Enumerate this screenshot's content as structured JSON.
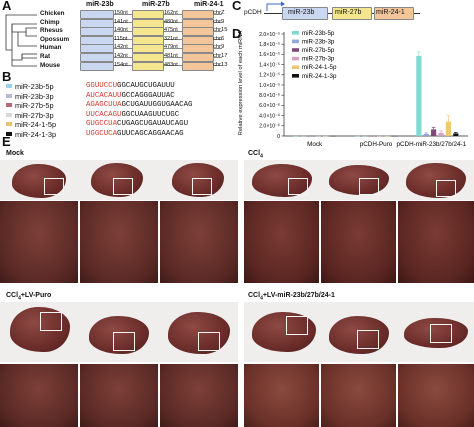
{
  "panel_letters": {
    "a": "A",
    "b": "B",
    "c": "C",
    "d": "D",
    "e": "E"
  },
  "panel_a": {
    "gene_headers": [
      "miR-23b",
      "miR-27b",
      "miR-24-1"
    ],
    "species": [
      {
        "name": "Chicken",
        "len1": "150nt",
        "len2": "162nt",
        "chr": "chrZ"
      },
      {
        "name": "Chimp",
        "len1": "141nt",
        "len2": "480nt",
        "chr": "chr9"
      },
      {
        "name": "Rhesus",
        "len1": "140nt",
        "len2": "475nt",
        "chr": "chr15"
      },
      {
        "name": "Opossum",
        "len1": "115nt",
        "len2": "321nt",
        "chr": "chr6"
      },
      {
        "name": "Human",
        "len1": "142nt",
        "len2": "479nt",
        "chr": "chr9"
      },
      {
        "name": "Rat",
        "len1": "142nt",
        "len2": "481nt",
        "chr": "chr17"
      },
      {
        "name": "Mouse",
        "len1": "154nt",
        "len2": "483nt",
        "chr": "chr13"
      }
    ],
    "colors": {
      "mir23b": "#c9d8f0",
      "mir27b": "#f4e58f",
      "mir24": "#f2c69a"
    }
  },
  "panel_b": {
    "rows": [
      {
        "name": "miR-23b-5p",
        "seed": "GGUUCCU",
        "rest": "GGCAUGCUGAUUU",
        "swatch": "#9ad1ee"
      },
      {
        "name": "miR-23b-3p",
        "seed": "AUCACAUU",
        "rest": "GCCAGGGAUUAC",
        "swatch": "#b9b9d9"
      },
      {
        "name": "miR-27b-5p",
        "seed": "AGAGCUUA",
        "rest": "GCUGAUUGGUGAACAG",
        "swatch": "#b96a7a"
      },
      {
        "name": "miR-27b-3p",
        "seed": "UUCACAGU",
        "rest": "GGCUAAGUUCUGC",
        "swatch": "#d8d8d8"
      },
      {
        "name": "miR-24-1-5p",
        "seed": "GUGCCUA",
        "rest": "CUGAGCUGAUAUCAGU",
        "swatch": "#eac26e"
      },
      {
        "name": "miR-24-1-3p",
        "seed": "UGGCUCA",
        "rest": "GUUCAGCAGGAACAG",
        "swatch": "#111111"
      }
    ],
    "seed_color": "#d43a2c"
  },
  "panel_c": {
    "vector": "pCDH",
    "genes": [
      "miR-23b",
      "miR-27b",
      "miR-24-1"
    ],
    "colors": {
      "mir23b": "#c9d8f0",
      "mir27b": "#f4e58f",
      "mir24": "#f2c69a"
    }
  },
  "panel_e": {
    "titles": {
      "mock": "Mock",
      "ccl4_main": "CCl",
      "ccl4_sub": "4",
      "puro_main": "CCl",
      "puro_sub": "4",
      "puro_tail": "+LV-Puro",
      "mir_main": "CCl",
      "mir_sub": "4",
      "mir_tail": "+LV-miR-23b/27b/24-1"
    }
  },
  "chart_data": {
    "type": "bar",
    "title": "",
    "ylabel": "Relative expression level of each miRNA",
    "ylim": [
      0,
      2e-05
    ],
    "yticks": [
      0,
      2e-06,
      4e-06,
      6e-06,
      8e-06,
      1e-05,
      1.2e-05,
      1.4e-05,
      1.6e-05,
      1.8e-05,
      2e-05
    ],
    "ytick_labels": [
      "0",
      "2.0×10⁻⁶",
      "4.0×10⁻⁶",
      "6.0×10⁻⁶",
      "8.0×10⁻⁶",
      "1.0×10⁻⁵",
      "1.2×10⁻⁵",
      "1.4×10⁻⁵",
      "1.6×10⁻⁵",
      "1.8×10⁻⁵",
      "2.0×10⁻⁵"
    ],
    "categories": [
      "Mock",
      "pCDH-Puro",
      "pCDH-miR-23b/27b/24-1"
    ],
    "legend_position": "top-left",
    "series": [
      {
        "name": "miR-23b-5p",
        "color": "#7fdbd2",
        "values": [
          2e-08,
          2e-08,
          1.57e-05
        ],
        "errors": [
          0,
          0,
          8e-07
        ]
      },
      {
        "name": "miR-23b-3p",
        "color": "#8fa7da",
        "values": [
          2e-08,
          2e-08,
          4e-07
        ],
        "errors": [
          0,
          0,
          2e-07
        ]
      },
      {
        "name": "miR-27b-5p",
        "color": "#7e4a7a",
        "values": [
          2e-08,
          2e-08,
          1.3e-06
        ],
        "errors": [
          0,
          0,
          4e-07
        ]
      },
      {
        "name": "miR-27b-3p",
        "color": "#d4a3c4",
        "values": [
          2e-08,
          2e-08,
          6e-07
        ],
        "errors": [
          0,
          0,
          4e-07
        ]
      },
      {
        "name": "miR-24-1-5p",
        "color": "#f1c772",
        "values": [
          2e-08,
          2e-08,
          2.8e-06
        ],
        "errors": [
          0,
          0,
          1.2e-06
        ]
      },
      {
        "name": "miR-24-1-3p",
        "color": "#111111",
        "values": [
          2e-08,
          2e-08,
          5e-07
        ],
        "errors": [
          0,
          0,
          2e-07
        ]
      }
    ]
  }
}
